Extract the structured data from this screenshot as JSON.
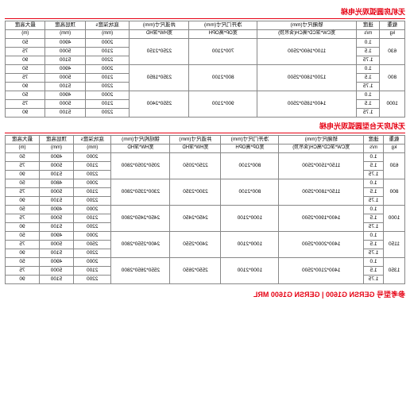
{
  "table1": {
    "title": "无机房圆弧观光电梯",
    "headers": {
      "c1": "载重",
      "c1u": "kg",
      "c2": "速度",
      "c2u": "m/s",
      "c3": "轿厢尺寸(mm)",
      "c3u": "宽CW*深CD*高CH(含吊顶)",
      "c4": "净开门尺寸(mm)",
      "c4u": "宽OP*高OPH",
      "c5": "井道尺寸(mm)",
      "c5u": "宽HW*深HD",
      "c6": "底坑深度s",
      "c6u": "(mm)",
      "c7": "顶层高度",
      "c7u": "(mm)",
      "c8": "最大高度",
      "c8u": "(m)"
    },
    "groups": [
      {
        "load": "630",
        "cabin": "1100*1600*2500",
        "door": "700*2100",
        "shaft": "2250*2150",
        "rows": [
          {
            "speed": "1.0",
            "pit": "2000",
            "top": "4900",
            "max": "50"
          },
          {
            "speed": "1.5",
            "pit": "2100",
            "top": "5000",
            "max": "75"
          },
          {
            "speed": "1.75",
            "pit": "2200",
            "top": "5100",
            "max": "90"
          }
        ]
      },
      {
        "load": "800",
        "cabin": "1200*1800*2500",
        "door": "800*2100",
        "shaft": "2350*1850",
        "rows": [
          {
            "speed": "1.0",
            "pit": "2000",
            "top": "4900",
            "max": "50"
          },
          {
            "speed": "1.5",
            "pit": "2100",
            "top": "5000",
            "max": "75"
          },
          {
            "speed": "1.75",
            "pit": "2200",
            "top": "5100",
            "max": "90"
          }
        ]
      },
      {
        "load": "1000",
        "cabin": "1400*1850*2500",
        "door": "900*2100",
        "shaft": "2550*2400",
        "rows": [
          {
            "speed": "1.0",
            "pit": "2000",
            "top": "4900",
            "max": "50"
          },
          {
            "speed": "1.5",
            "pit": "2100",
            "top": "5000",
            "max": "75"
          },
          {
            "speed": "1.75",
            "pit": "2200",
            "top": "5100",
            "max": "90"
          }
        ]
      }
    ]
  },
  "table2": {
    "title": "无机房天台型圆弧观光电梯",
    "headers": {
      "c1": "载重",
      "c1u": "kg",
      "c2": "速度",
      "c2u": "m/s",
      "c3": "轿厢尺寸(mm)",
      "c3u": "宽CW*深CD*高CH(含吊顶)",
      "c4": "净开门尺寸(mm)",
      "c4u": "宽OP*高OPH",
      "c5": "井道尺寸(mm)",
      "c5u": "宽HW*深HD",
      "c5a": "钢结构尺寸(mm)",
      "c5au": "宽HW*深HD",
      "c6": "底坑深度s",
      "c6u": "(mm)",
      "c7": "顶层高度",
      "c7u": "(mm)",
      "c8": "最大高度",
      "c8u": "(m)"
    },
    "groups": [
      {
        "load": "630",
        "cabin": "1150*1500*2500",
        "door": "800*2100",
        "shaft": "2250*2050",
        "steel": "2050*2050*2800",
        "rows": [
          {
            "speed": "1.0",
            "pit": "2000",
            "top": "4900",
            "max": "50"
          },
          {
            "speed": "1.5",
            "pit": "2100",
            "top": "5000",
            "max": "75"
          },
          {
            "speed": "1.75",
            "pit": "2200",
            "top": "5100",
            "max": "90"
          }
        ]
      },
      {
        "load": "800",
        "cabin": "1150*1800*2500",
        "door": "800*2100",
        "shaft": "2300*2350",
        "steel": "2300*2350*2800",
        "rows": [
          {
            "speed": "1.0",
            "pit": "2000",
            "top": "4800",
            "max": "50"
          },
          {
            "speed": "1.5",
            "pit": "2100",
            "top": "5000",
            "max": "75"
          },
          {
            "speed": "1.75",
            "pit": "2200",
            "top": "5100",
            "max": "90"
          }
        ]
      },
      {
        "load": "1000",
        "cabin": "1400*1900*2500",
        "door": "1000*2100",
        "shaft": "2450*2450",
        "steel": "2450*2450*2800",
        "rows": [
          {
            "speed": "1.0",
            "pit": "2000",
            "top": "4900",
            "max": "50"
          },
          {
            "speed": "1.5",
            "pit": "2100",
            "top": "5000",
            "max": "75"
          },
          {
            "speed": "1.75",
            "pit": "2200",
            "top": "5100",
            "max": "90"
          }
        ]
      },
      {
        "load": "1150",
        "cabin": "1400*2000*2500",
        "door": "1000*2100",
        "shaft": "2400*2550",
        "steel": "2400*2550*2800",
        "rows": [
          {
            "speed": "1.0",
            "pit": "2000",
            "top": "4900",
            "max": "50"
          },
          {
            "speed": "1.5",
            "pit": "2500",
            "top": "5000",
            "max": "75"
          },
          {
            "speed": "1.75",
            "pit": "2200",
            "top": "5100",
            "max": "90"
          }
        ]
      },
      {
        "load": "1350",
        "cabin": "1400*2100*2500",
        "door": "1000*2100",
        "shaft": "2550*2650",
        "steel": "2550*2650*2800",
        "rows": [
          {
            "speed": "1.0",
            "pit": "2000",
            "top": "4900",
            "max": "50"
          },
          {
            "speed": "1.5",
            "pit": "2100",
            "top": "5000",
            "max": "75"
          },
          {
            "speed": "1.75",
            "pit": "2200",
            "top": "5100",
            "max": "90"
          }
        ]
      }
    ]
  },
  "footer": "参考型号 GERSN G1600 | GERSN G1600 MRL"
}
